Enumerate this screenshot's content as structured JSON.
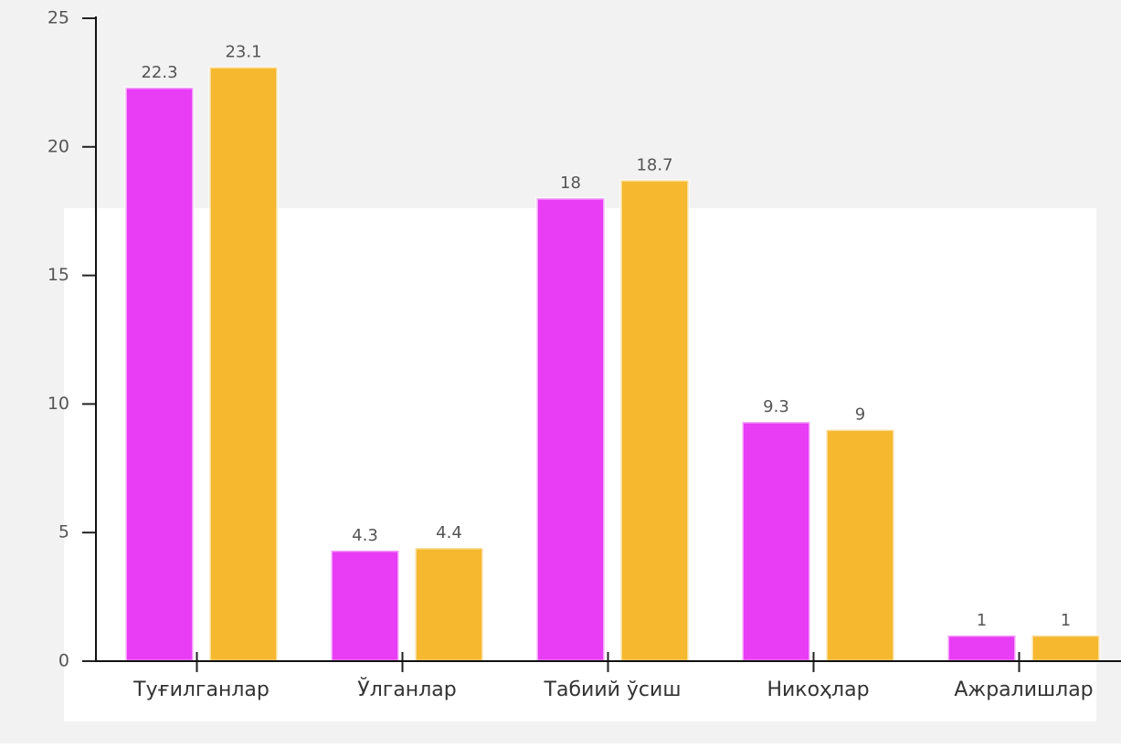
{
  "chart_data": {
    "type": "bar",
    "categories": [
      "Туғилганлар",
      "Ўлганлар",
      "Табиий ўсиш",
      "Никоҳлар",
      "Ажралишлар"
    ],
    "series": [
      {
        "color": "#e83cf5",
        "values": [
          22.3,
          4.3,
          18,
          9.3,
          1
        ]
      },
      {
        "color": "#f5b82e",
        "values": [
          23.1,
          4.4,
          18.7,
          9,
          1
        ]
      }
    ],
    "ylim": [
      0,
      25
    ],
    "yticks": [
      0,
      5,
      10,
      15,
      20,
      25
    ],
    "grid": false
  }
}
